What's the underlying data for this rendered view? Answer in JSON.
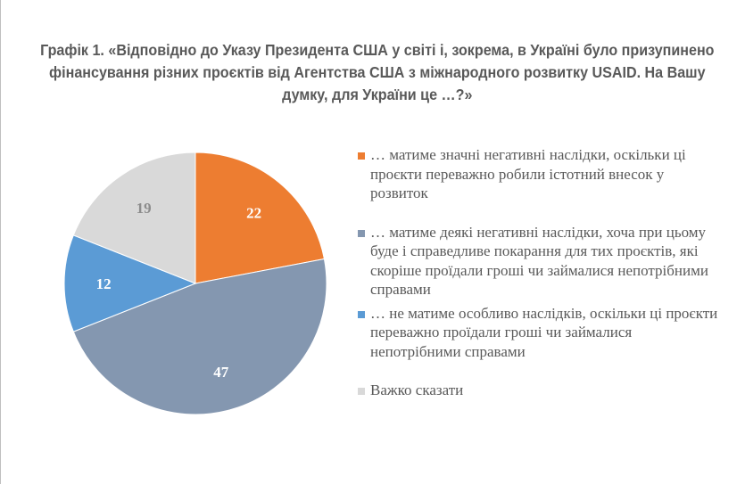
{
  "chart_data": {
    "type": "pie",
    "title": "Графік 1. «Відповідно до Указу Президента США у світі і, зокрема, в Україні було призупинено фінансування різних проєктів від Агентства США з міжнародного розвитку USAID. На Вашу думку, для України це …?»",
    "legend_position": "right",
    "slices": [
      {
        "label": "… матиме значні негативні наслідки, оскільки ці проєкти переважно робили істотний внесок у розвиток",
        "value": 22,
        "color": "#ED7D31"
      },
      {
        "label": "… матиме деякі негативні наслідки, хоча при цьому буде і справедливе покарання для тих проєктів, які скоріше проїдали гроші чи займалися непотрібними справами",
        "value": 47,
        "color": "#8497B0"
      },
      {
        "label": "… не матиме особливо наслідків, оскільки ці проєкти переважно проїдали гроші чи займалися непотрібними справами",
        "value": 12,
        "color": "#5B9BD5"
      },
      {
        "label": "Важко сказати",
        "value": 19,
        "color": "#D9D9D9"
      }
    ],
    "data_label_colors": [
      "#ffffff",
      "#ffffff",
      "#ffffff",
      "#8c8c8c"
    ]
  }
}
